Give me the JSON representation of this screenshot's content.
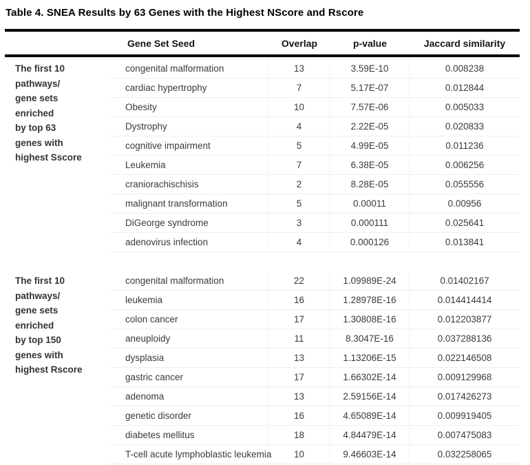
{
  "title": "Table 4. SNEA Results by 63 Genes with the Highest NScore and Rscore",
  "header": {
    "seed": "Gene Set Seed",
    "overlap": "Overlap",
    "pvalue": "p-value",
    "jaccard": "Jaccard similarity"
  },
  "sections": [
    {
      "label": "The first 10\npathways/\ngene sets\nenriched\nby top 63\ngenes with\nhighest Sscore",
      "rows": [
        {
          "seed": "congenital malformation",
          "overlap": "13",
          "pvalue": "3.59E-10",
          "jaccard": "0.008238"
        },
        {
          "seed": "cardiac hypertrophy",
          "overlap": "7",
          "pvalue": "5.17E-07",
          "jaccard": "0.012844"
        },
        {
          "seed": "Obesity",
          "overlap": "10",
          "pvalue": "7.57E-06",
          "jaccard": "0.005033"
        },
        {
          "seed": "Dystrophy",
          "overlap": "4",
          "pvalue": "2.22E-05",
          "jaccard": "0.020833"
        },
        {
          "seed": "cognitive impairment",
          "overlap": "5",
          "pvalue": "4.99E-05",
          "jaccard": "0.011236"
        },
        {
          "seed": "Leukemia",
          "overlap": "7",
          "pvalue": "6.38E-05",
          "jaccard": "0.006256"
        },
        {
          "seed": "craniorachischisis",
          "overlap": "2",
          "pvalue": "8.28E-05",
          "jaccard": "0.055556"
        },
        {
          "seed": "malignant transformation",
          "overlap": "5",
          "pvalue": "0.00011",
          "jaccard": "0.00956"
        },
        {
          "seed": "DiGeorge syndrome",
          "overlap": "3",
          "pvalue": "0.000111",
          "jaccard": "0.025641"
        },
        {
          "seed": "adenovirus infection",
          "overlap": "4",
          "pvalue": "0.000126",
          "jaccard": "0.013841"
        }
      ]
    },
    {
      "label": "The first 10\npathways/\ngene sets\nenriched\nby top 150\ngenes with\nhighest Rscore",
      "rows": [
        {
          "seed": "congenital malformation",
          "overlap": "22",
          "pvalue": "1.09989E-24",
          "jaccard": "0.01402167"
        },
        {
          "seed": "leukemia",
          "overlap": "16",
          "pvalue": "1.28978E-16",
          "jaccard": "0.014414414"
        },
        {
          "seed": "colon cancer",
          "overlap": "17",
          "pvalue": "1.30808E-16",
          "jaccard": "0.012203877"
        },
        {
          "seed": "aneuploidy",
          "overlap": "11",
          "pvalue": "8.3047E-16",
          "jaccard": "0.037288136"
        },
        {
          "seed": "dysplasia",
          "overlap": "13",
          "pvalue": "1.13206E-15",
          "jaccard": "0.022146508"
        },
        {
          "seed": "gastric cancer",
          "overlap": "17",
          "pvalue": "1.66302E-14",
          "jaccard": "0.009129968"
        },
        {
          "seed": "adenoma",
          "overlap": "13",
          "pvalue": "2.59156E-14",
          "jaccard": "0.017426273"
        },
        {
          "seed": "genetic disorder",
          "overlap": "16",
          "pvalue": "4.65089E-14",
          "jaccard": "0.009919405"
        },
        {
          "seed": "diabetes mellitus",
          "overlap": "18",
          "pvalue": "4.84479E-14",
          "jaccard": "0.007475083"
        },
        {
          "seed": "T-cell acute lymphoblastic leukemia",
          "overlap": "10",
          "pvalue": "9.46603E-14",
          "jaccard": "0.032258065"
        }
      ]
    }
  ]
}
